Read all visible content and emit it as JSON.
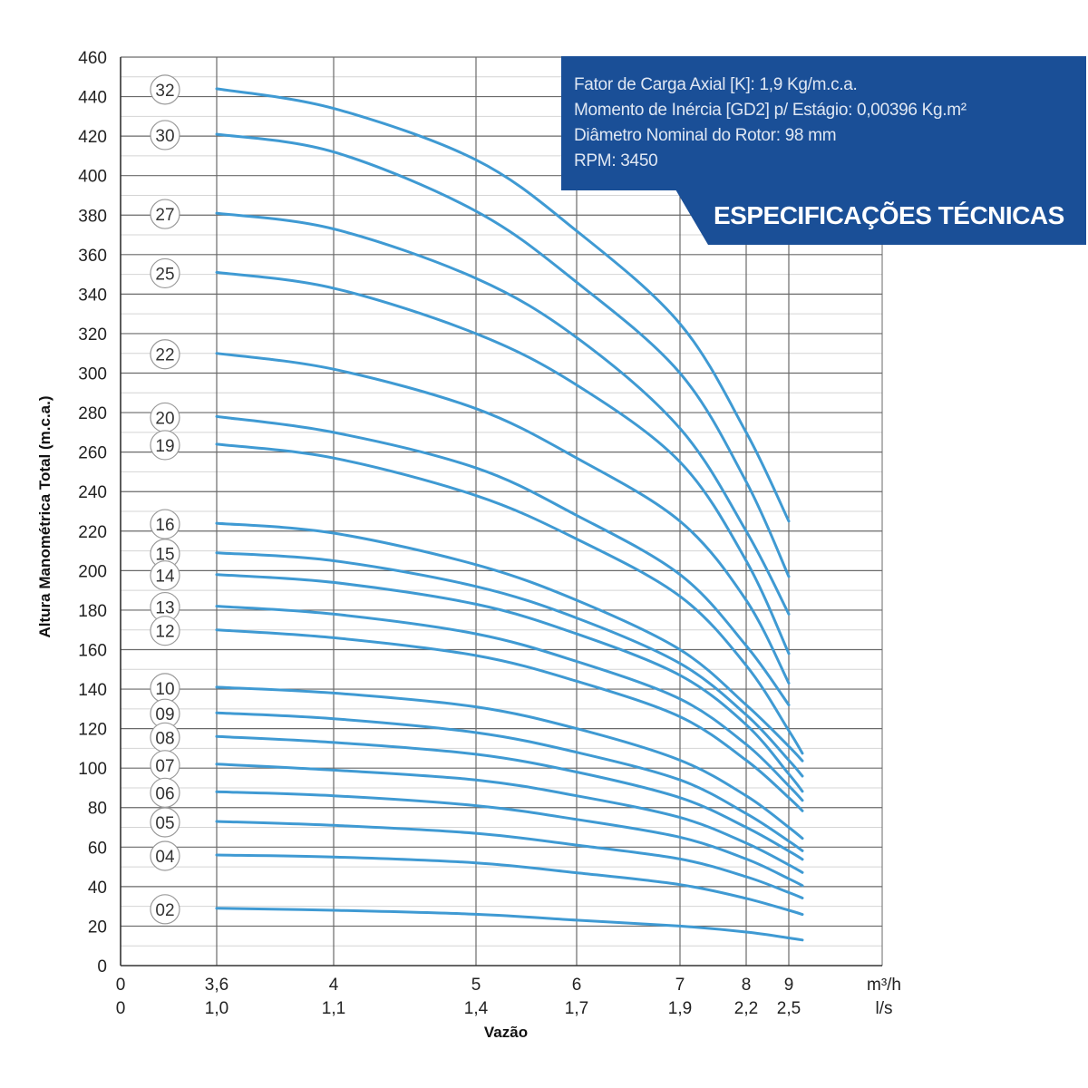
{
  "chart_data": {
    "type": "line",
    "ylabel": "Altura Manométrica Total (m.c.a.)",
    "xlabel": "Vazão",
    "x_unit_primary": "m³/h",
    "x_unit_secondary": "l/s",
    "ylim": [
      0,
      460
    ],
    "yticks": [
      "0",
      "20",
      "40",
      "60",
      "80",
      "100",
      "120",
      "140",
      "160",
      "180",
      "200",
      "220",
      "240",
      "260",
      "280",
      "300",
      "320",
      "340",
      "360",
      "380",
      "400",
      "420",
      "440",
      "460"
    ],
    "xticks_primary": [
      "0",
      "3,6",
      "4",
      "5",
      "6",
      "7",
      "8",
      "9"
    ],
    "xticks_secondary": [
      "0",
      "1,0",
      "1,1",
      "1,4",
      "1,7",
      "1,9",
      "2,2",
      "2,5"
    ],
    "x": [
      3.6,
      4,
      5,
      6,
      7,
      8,
      9
    ],
    "series": [
      {
        "name": "32",
        "values": [
          444,
          434,
          408,
          372,
          325,
          270,
          225
        ]
      },
      {
        "name": "30",
        "values": [
          421,
          412,
          382,
          346,
          300,
          245,
          197
        ]
      },
      {
        "name": "27",
        "values": [
          381,
          373,
          348,
          318,
          272,
          220,
          178
        ]
      },
      {
        "name": "25",
        "values": [
          351,
          343,
          320,
          294,
          255,
          205,
          158
        ]
      },
      {
        "name": "22",
        "values": [
          310,
          302,
          282,
          257,
          225,
          185,
          143
        ]
      },
      {
        "name": "20",
        "values": [
          278,
          270,
          252,
          228,
          198,
          162,
          132
        ]
      },
      {
        "name": "19",
        "values": [
          264,
          257,
          238,
          216,
          187,
          152,
          119
        ]
      },
      {
        "name": "16",
        "values": [
          224,
          219,
          203,
          185,
          160,
          132,
          111
        ]
      },
      {
        "name": "15",
        "values": [
          209,
          205,
          192,
          176,
          153,
          127,
          104
        ]
      },
      {
        "name": "14",
        "values": [
          198,
          194,
          183,
          168,
          147,
          122,
          97
        ]
      },
      {
        "name": "13",
        "values": [
          182,
          178,
          168,
          154,
          135,
          112,
          91
        ]
      },
      {
        "name": "12",
        "values": [
          170,
          166,
          157,
          144,
          126,
          104,
          85
        ]
      },
      {
        "name": "10",
        "values": [
          141,
          138,
          131,
          120,
          104,
          86,
          70
        ]
      },
      {
        "name": "09",
        "values": [
          128,
          125,
          118,
          108,
          94,
          77,
          63
        ]
      },
      {
        "name": "08",
        "values": [
          116,
          113,
          107,
          98,
          85,
          70,
          58
        ]
      },
      {
        "name": "07",
        "values": [
          102,
          99,
          94,
          86,
          75,
          62,
          51
        ]
      },
      {
        "name": "06",
        "values": [
          88,
          86,
          81,
          74,
          65,
          54,
          44
        ]
      },
      {
        "name": "05",
        "values": [
          73,
          71,
          67,
          61,
          54,
          45,
          37
        ]
      },
      {
        "name": "04",
        "values": [
          56,
          55,
          52,
          47,
          41,
          34,
          28
        ]
      },
      {
        "name": "02",
        "values": [
          29,
          28,
          26,
          23,
          20,
          17,
          14
        ]
      }
    ]
  },
  "specs": {
    "lines": [
      "Fator de Carga Axial [K]: 1,9 Kg/m.c.a.",
      "Momento de Inércia [GD2] p/ Estágio: 0,00396 Kg.m²",
      "Diâmetro Nominal do Rotor: 98 mm",
      "RPM: 3450"
    ],
    "banner": "ESPECIFICAÇÕES TÉCNICAS"
  },
  "colors": {
    "curve": "#3f9ad3",
    "banner_bg": "#1a4f97",
    "grid_major": "#4d4d4d",
    "grid_minor": "#cfcfcf"
  }
}
